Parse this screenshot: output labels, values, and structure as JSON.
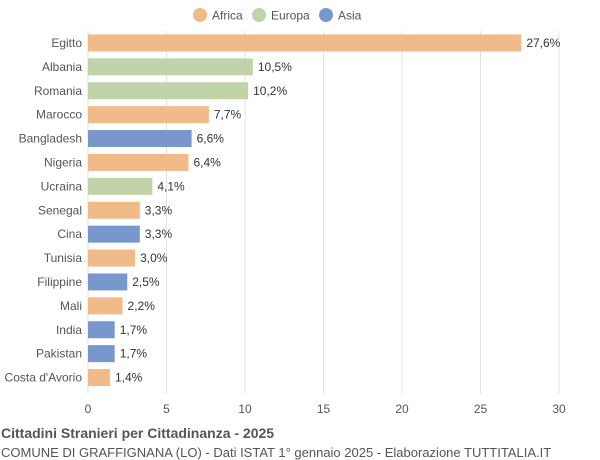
{
  "title": "Cittadini Stranieri per Cittadinanza - 2025",
  "subtitle": "COMUNE DI GRAFFIGNANA (LO) - Dati ISTAT 1° gennaio 2025 - Elaborazione TUTTITALIA.IT",
  "chart_data": {
    "type": "bar",
    "orientation": "horizontal",
    "legend": {
      "position": "top",
      "entries": [
        {
          "name": "Africa",
          "color": "#f0bb88"
        },
        {
          "name": "Europa",
          "color": "#c1d4a9"
        },
        {
          "name": "Asia",
          "color": "#7797cd"
        }
      ]
    },
    "categories": [
      "Egitto",
      "Albania",
      "Romania",
      "Marocco",
      "Bangladesh",
      "Nigeria",
      "Ucraina",
      "Senegal",
      "Cina",
      "Tunisia",
      "Filippine",
      "Mali",
      "India",
      "Pakistan",
      "Costa d'Avorio"
    ],
    "values": [
      27.6,
      10.5,
      10.2,
      7.7,
      6.6,
      6.4,
      4.1,
      3.3,
      3.3,
      3.0,
      2.5,
      2.2,
      1.7,
      1.7,
      1.4
    ],
    "labels": [
      "27,6%",
      "10,5%",
      "10,2%",
      "7,7%",
      "6,6%",
      "6,4%",
      "4,1%",
      "3,3%",
      "3,3%",
      "3,0%",
      "2,5%",
      "2,2%",
      "1,7%",
      "1,7%",
      "1,4%"
    ],
    "groups": [
      "Africa",
      "Europa",
      "Europa",
      "Africa",
      "Asia",
      "Africa",
      "Europa",
      "Africa",
      "Asia",
      "Africa",
      "Asia",
      "Africa",
      "Asia",
      "Asia",
      "Africa"
    ],
    "xlim": [
      0,
      30
    ],
    "xticks": [
      "0",
      "5",
      "10",
      "15",
      "20",
      "25",
      "30"
    ],
    "grid": true
  }
}
